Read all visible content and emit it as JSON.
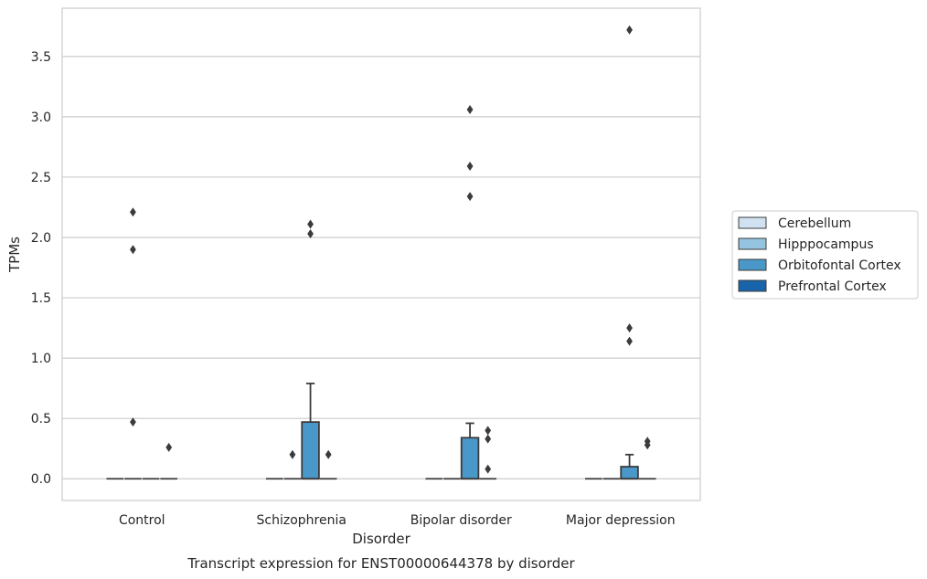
{
  "chart_data": {
    "type": "box",
    "title": "",
    "caption": "Transcript expression for ENST00000644378 by disorder",
    "xlabel": "Disorder",
    "ylabel": "TPMs",
    "ylim": [
      -0.18,
      3.9
    ],
    "yticks": [
      "0.0",
      "0.5",
      "1.0",
      "1.5",
      "2.0",
      "2.5",
      "3.0",
      "3.5"
    ],
    "categories": [
      "Control",
      "Schizophrenia",
      "Bipolar disorder",
      "Major depression"
    ],
    "grid": true,
    "legend_position": "right",
    "series": [
      {
        "name": "Cerebellum",
        "color": "#d0e1f2",
        "boxes": [
          {
            "q1": 0,
            "median": 0,
            "q3": 0,
            "whisker_low": 0,
            "whisker_high": 0,
            "outliers": []
          },
          {
            "q1": 0,
            "median": 0,
            "q3": 0,
            "whisker_low": 0,
            "whisker_high": 0,
            "outliers": []
          },
          {
            "q1": 0,
            "median": 0,
            "q3": 0,
            "whisker_low": 0,
            "whisker_high": 0,
            "outliers": []
          },
          {
            "q1": 0,
            "median": 0,
            "q3": 0,
            "whisker_low": 0,
            "whisker_high": 0,
            "outliers": []
          }
        ]
      },
      {
        "name": "Hipppocampus",
        "color": "#94c4df",
        "boxes": [
          {
            "q1": 0,
            "median": 0,
            "q3": 0,
            "whisker_low": 0,
            "whisker_high": 0,
            "outliers": [
              2.21,
              1.9,
              0.47
            ]
          },
          {
            "q1": 0,
            "median": 0,
            "q3": 0,
            "whisker_low": 0,
            "whisker_high": 0,
            "outliers": [
              0.2
            ]
          },
          {
            "q1": 0,
            "median": 0,
            "q3": 0,
            "whisker_low": 0,
            "whisker_high": 0,
            "outliers": []
          },
          {
            "q1": 0,
            "median": 0,
            "q3": 0,
            "whisker_low": 0,
            "whisker_high": 0,
            "outliers": []
          }
        ]
      },
      {
        "name": "Orbitofontal Cortex",
        "color": "#4a98c9",
        "boxes": [
          {
            "q1": 0,
            "median": 0,
            "q3": 0,
            "whisker_low": 0,
            "whisker_high": 0,
            "outliers": []
          },
          {
            "q1": 0,
            "median": 0,
            "q3": 0.47,
            "whisker_low": 0,
            "whisker_high": 0.79,
            "outliers": [
              2.11,
              2.03
            ]
          },
          {
            "q1": 0,
            "median": 0,
            "q3": 0.34,
            "whisker_low": 0,
            "whisker_high": 0.46,
            "outliers": [
              3.06,
              2.59,
              2.34
            ]
          },
          {
            "q1": 0,
            "median": 0,
            "q3": 0.1,
            "whisker_low": 0,
            "whisker_high": 0.2,
            "outliers": [
              3.72,
              1.25,
              1.14
            ]
          }
        ]
      },
      {
        "name": "Prefrontal Cortex",
        "color": "#1764ab",
        "boxes": [
          {
            "q1": 0,
            "median": 0,
            "q3": 0,
            "whisker_low": 0,
            "whisker_high": 0,
            "outliers": [
              0.26
            ]
          },
          {
            "q1": 0,
            "median": 0,
            "q3": 0,
            "whisker_low": 0,
            "whisker_high": 0,
            "outliers": [
              0.2
            ]
          },
          {
            "q1": 0,
            "median": 0,
            "q3": 0,
            "whisker_low": 0,
            "whisker_high": 0,
            "outliers": [
              0.4,
              0.33,
              0.08
            ]
          },
          {
            "q1": 0,
            "median": 0,
            "q3": 0,
            "whisker_low": 0,
            "whisker_high": 0,
            "outliers": [
              0.31,
              0.28
            ]
          }
        ]
      }
    ]
  }
}
